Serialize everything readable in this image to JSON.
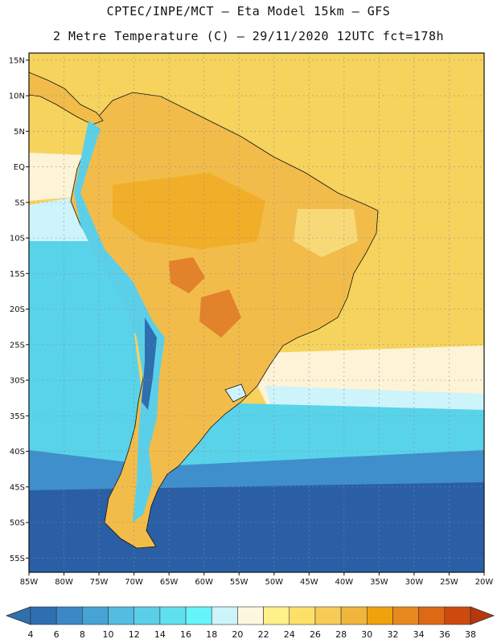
{
  "header": {
    "line1": "CPTEC/INPE/MCT –  Eta Model 15km – GFS",
    "line2": "2 Metre Temperature (C) – 29/11/2020 12UTC fct=178h"
  },
  "map": {
    "lon_range": [
      -85,
      -20
    ],
    "lat_range": [
      -57,
      16
    ],
    "lat_ticks": [
      {
        "value": 15,
        "label": "15N"
      },
      {
        "value": 10,
        "label": "10N"
      },
      {
        "value": 5,
        "label": "5N"
      },
      {
        "value": 0,
        "label": "EQ"
      },
      {
        "value": -5,
        "label": "5S"
      },
      {
        "value": -10,
        "label": "10S"
      },
      {
        "value": -15,
        "label": "15S"
      },
      {
        "value": -20,
        "label": "20S"
      },
      {
        "value": -25,
        "label": "25S"
      },
      {
        "value": -30,
        "label": "30S"
      },
      {
        "value": -35,
        "label": "35S"
      },
      {
        "value": -40,
        "label": "40S"
      },
      {
        "value": -45,
        "label": "45S"
      },
      {
        "value": -50,
        "label": "50S"
      },
      {
        "value": -55,
        "label": "55S"
      }
    ],
    "lon_ticks": [
      {
        "value": -85,
        "label": "85W"
      },
      {
        "value": -80,
        "label": "80W"
      },
      {
        "value": -75,
        "label": "75W"
      },
      {
        "value": -70,
        "label": "70W"
      },
      {
        "value": -65,
        "label": "65W"
      },
      {
        "value": -60,
        "label": "60W"
      },
      {
        "value": -55,
        "label": "55W"
      },
      {
        "value": -50,
        "label": "50W"
      },
      {
        "value": -45,
        "label": "45W"
      },
      {
        "value": -40,
        "label": "40W"
      },
      {
        "value": -35,
        "label": "35W"
      },
      {
        "value": -30,
        "label": "30W"
      },
      {
        "value": -25,
        "label": "25W"
      },
      {
        "value": -20,
        "label": "20W"
      }
    ]
  },
  "colorbar": {
    "labels": [
      "4",
      "6",
      "8",
      "10",
      "12",
      "14",
      "16",
      "18",
      "20",
      "22",
      "24",
      "26",
      "28",
      "30",
      "32",
      "34",
      "36",
      "38"
    ],
    "colors": [
      "#2e6fb0",
      "#3b88c4",
      "#46a4d3",
      "#52bde0",
      "#5ccfe8",
      "#5fe0ef",
      "#66f4fb",
      "#cdf3fb",
      "#fdf7df",
      "#fff08a",
      "#fde06a",
      "#f6cc57",
      "#f0b63c",
      "#f0a20c",
      "#e88920",
      "#de6914",
      "#ce4a0c"
    ],
    "low_color": "#2e6fb0",
    "high_color": "#b6380a"
  },
  "colors": {
    "ocean_deep": "#2a5fa6",
    "ocean_mid": "#3f8fcc",
    "ocean_cyan": "#58d3ea",
    "ocean_pale": "#cdf3fb",
    "ocean_cream": "#fdf3d6",
    "ocean_warm": "#f6d35d",
    "land_main": "#f2bc4a",
    "land_hot": "#e2822a",
    "land_cool": "#fbe58b",
    "andes_cold": "#5ccfe8",
    "coastline": "#111111",
    "grid": "#8a8a8a"
  }
}
